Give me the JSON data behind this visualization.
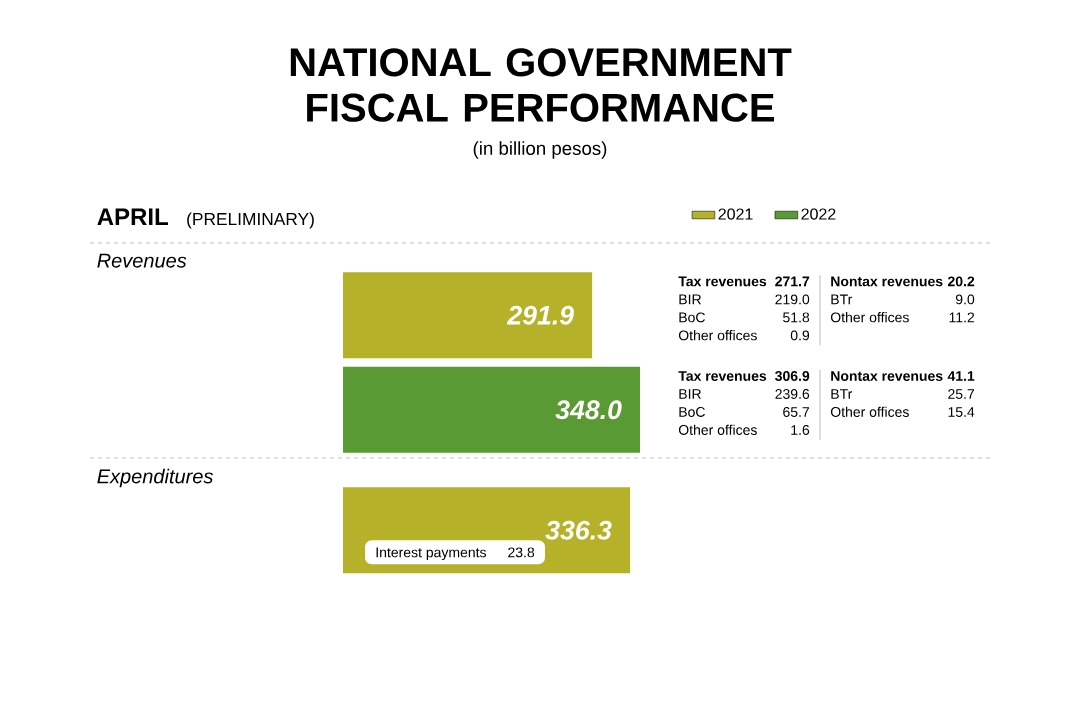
{
  "chart_data": {
    "type": "bar",
    "orientation": "horizontal",
    "title": "NATIONAL GOVERNMENT FISCAL PERFORMANCE",
    "subtitle": "(in billion pesos)",
    "categories": [
      "Revenues",
      "Expenditures"
    ],
    "series": [
      {
        "name": "2021",
        "color": "#b5b22a",
        "values": [
          291.9,
          336.3
        ],
        "value_labels": [
          "291.9",
          "336.3"
        ]
      },
      {
        "name": "2022",
        "color": "#5a9a35",
        "values": [
          348.0,
          null
        ],
        "value_labels": [
          "348.0",
          null
        ]
      }
    ],
    "legend": "top right",
    "annotations": [
      "APRIL",
      "(PRELIMINARY)",
      "Tax revenues",
      "271.7",
      "BIR",
      "219.0",
      "BoC",
      "51.8",
      "Other offices",
      "0.9",
      "Nontax revenues",
      "20.2",
      "BTr",
      "9.0",
      "Other offices",
      "11.2",
      "Tax revenues",
      "306.9",
      "BIR",
      "239.6",
      "BoC",
      "65.7",
      "Other offices",
      "1.6",
      "Nontax revenues",
      "41.1",
      "BTr",
      "25.7",
      "Other offices",
      "15.4",
      "Interest payments",
      "23.8"
    ]
  }
}
